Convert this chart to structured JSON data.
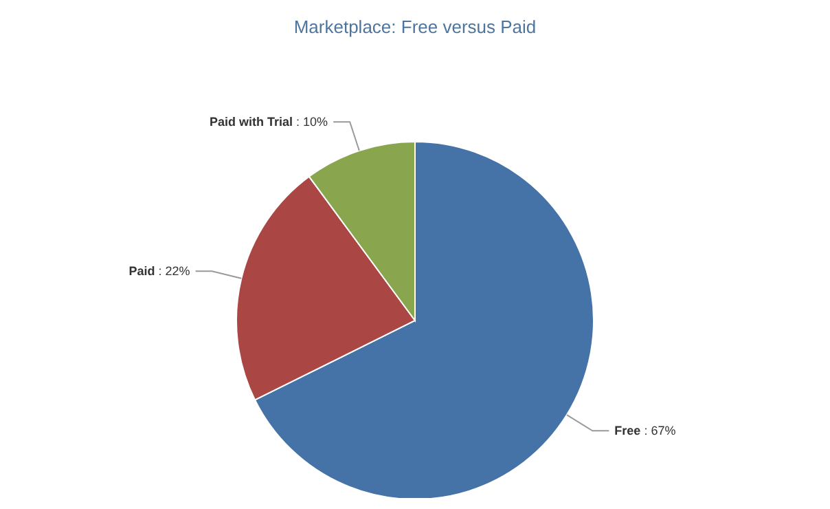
{
  "chart_data": {
    "type": "pie",
    "title": "Marketplace: Free versus Paid",
    "categories": [
      "Free",
      "Paid",
      "Paid with Trial"
    ],
    "values": [
      67,
      22,
      10
    ],
    "value_labels": [
      ": 67%",
      ": 22%",
      ": 10%"
    ],
    "colors": [
      "#4572a7",
      "#aa4643",
      "#89a54e"
    ],
    "legend": false
  }
}
